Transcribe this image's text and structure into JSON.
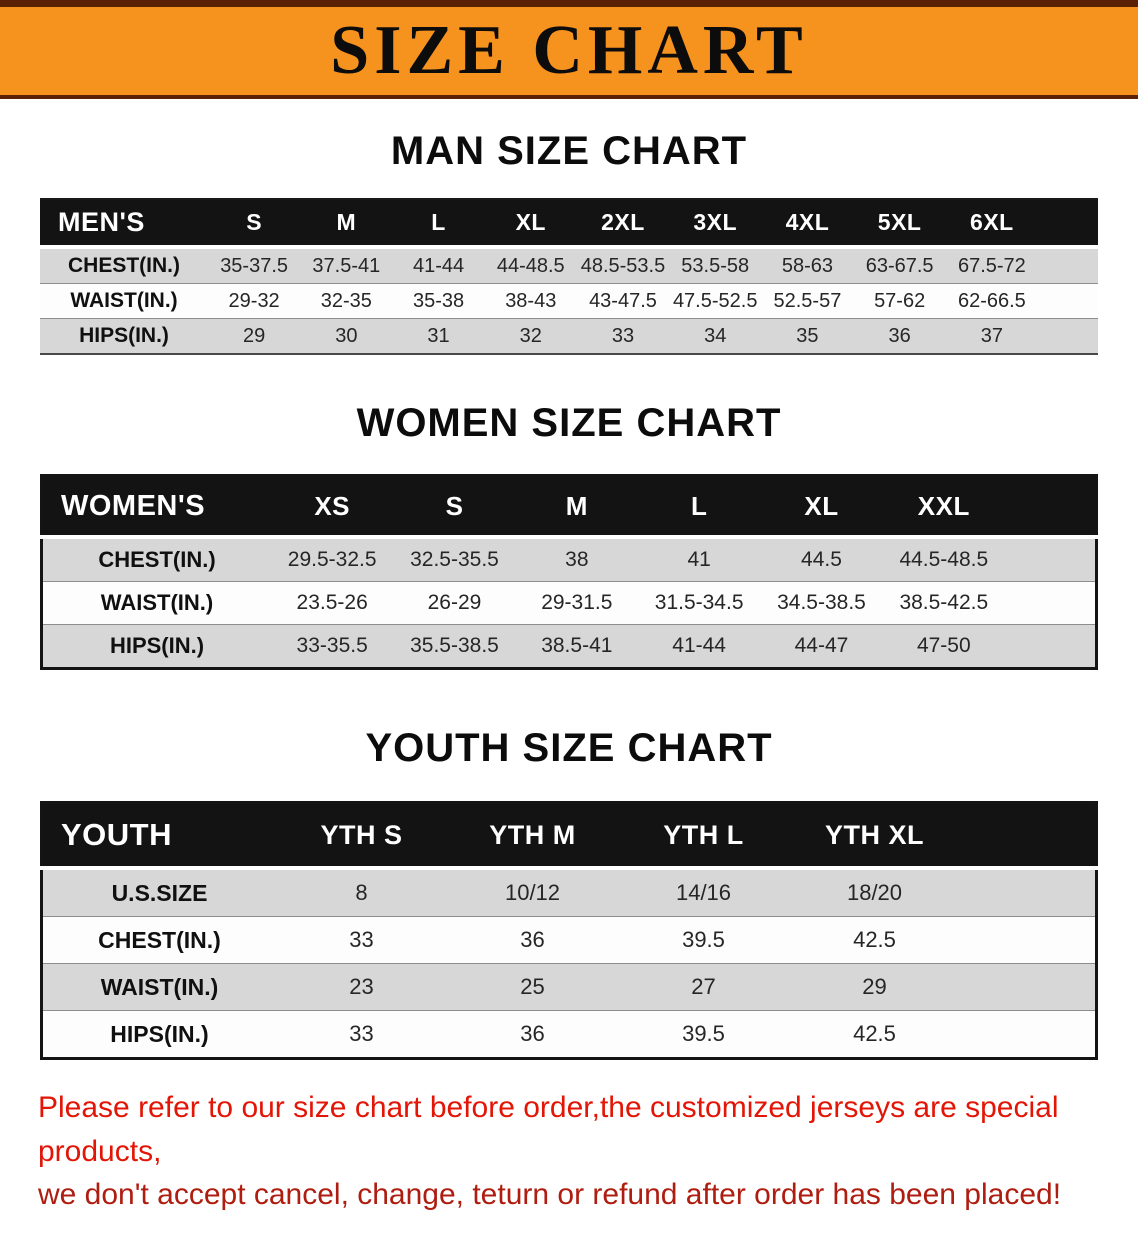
{
  "banner": {
    "title": "SIZE CHART"
  },
  "sections": {
    "men": {
      "heading": "MAN SIZE CHART"
    },
    "women": {
      "heading": "WOMEN SIZE CHART"
    },
    "youth": {
      "heading": "YOUTH SIZE CHART"
    }
  },
  "tables": {
    "men": {
      "header": [
        "MEN'S",
        "S",
        "M",
        "L",
        "XL",
        "2XL",
        "3XL",
        "4XL",
        "5XL",
        "6XL"
      ],
      "rows": [
        [
          "CHEST(IN.)",
          "35-37.5",
          "37.5-41",
          "41-44",
          "44-48.5",
          "48.5-53.5",
          "53.5-58",
          "58-63",
          "63-67.5",
          "67.5-72"
        ],
        [
          "WAIST(IN.)",
          "29-32",
          "32-35",
          "35-38",
          "38-43",
          "43-47.5",
          "47.5-52.5",
          "52.5-57",
          "57-62",
          "62-66.5"
        ],
        [
          "HIPS(IN.)",
          "29",
          "30",
          "31",
          "32",
          "33",
          "34",
          "35",
          "36",
          "37"
        ]
      ]
    },
    "women": {
      "header": [
        "WOMEN'S",
        "XS",
        "S",
        "M",
        "L",
        "XL",
        "XXL"
      ],
      "rows": [
        [
          "CHEST(IN.)",
          "29.5-32.5",
          "32.5-35.5",
          "38",
          "41",
          "44.5",
          "44.5-48.5"
        ],
        [
          "WAIST(IN.)",
          "23.5-26",
          "26-29",
          "29-31.5",
          "31.5-34.5",
          "34.5-38.5",
          "38.5-42.5"
        ],
        [
          "HIPS(IN.)",
          "33-35.5",
          "35.5-38.5",
          "38.5-41",
          "41-44",
          "44-47",
          "47-50"
        ]
      ]
    },
    "youth": {
      "header": [
        "YOUTH",
        "YTH S",
        "YTH M",
        "YTH L",
        "YTH XL"
      ],
      "rows": [
        [
          "U.S.SIZE",
          "8",
          "10/12",
          "14/16",
          "18/20"
        ],
        [
          "CHEST(IN.)",
          "33",
          "36",
          "39.5",
          "42.5"
        ],
        [
          "WAIST(IN.)",
          "23",
          "25",
          "27",
          "29"
        ],
        [
          "HIPS(IN.)",
          "33",
          "36",
          "39.5",
          "42.5"
        ]
      ]
    }
  },
  "disclaimer": {
    "line1": "Please refer to our size chart before order,the customized jerseys are special products,",
    "line2": "we don't accept cancel, change, teturn or refund after order has been placed!"
  },
  "colors": {
    "banner_bg": "#F6921E",
    "banner_edge": "#5A2104",
    "table_header_bg": "#131313",
    "stripe_gray": "#D7D7D7",
    "disclaimer_red": "#E21506",
    "disclaimer_dark_red": "#AE1D10"
  }
}
